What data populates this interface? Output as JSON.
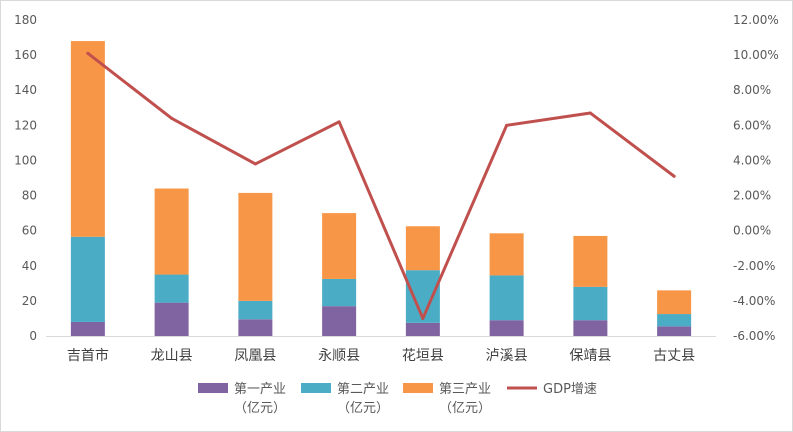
{
  "chart_data": {
    "type": "bar",
    "stacked": true,
    "categories": [
      "吉首市",
      "龙山县",
      "凤凰县",
      "永顺县",
      "花垣县",
      "泸溪县",
      "保靖县",
      "古丈县"
    ],
    "series": [
      {
        "name": "第一产业",
        "name_line2": "（亿元）",
        "type": "bar",
        "axis": "left",
        "color": "#8064A2",
        "values": [
          8,
          19,
          9.5,
          17,
          7.5,
          9,
          9,
          5.5
        ]
      },
      {
        "name": "第二产业",
        "name_line2": "（亿元）",
        "type": "bar",
        "axis": "left",
        "color": "#4BACC6",
        "values": [
          48.5,
          16,
          10.5,
          15.5,
          30,
          25.5,
          19,
          7
        ]
      },
      {
        "name": "第三产业",
        "name_line2": "（亿元）",
        "type": "bar",
        "axis": "left",
        "color": "#F79646",
        "values": [
          111.5,
          49,
          61.5,
          37.5,
          25,
          24,
          29,
          13.5
        ]
      },
      {
        "name": "GDP增速",
        "type": "line",
        "axis": "right",
        "color": "#C0504D",
        "values": [
          10.1,
          6.4,
          3.8,
          6.2,
          -5.0,
          6.0,
          6.7,
          3.1
        ]
      }
    ],
    "ylim": [
      0,
      180
    ],
    "yticks": [
      "0",
      "20",
      "40",
      "60",
      "80",
      "100",
      "120",
      "140",
      "160",
      "180"
    ],
    "y2lim": [
      -6,
      12
    ],
    "y2ticks": [
      "-6.00%",
      "-4.00%",
      "-2.00%",
      "0.00%",
      "2.00%",
      "4.00%",
      "6.00%",
      "8.00%",
      "10.00%",
      "12.00%"
    ],
    "grid": false,
    "legend": "bottom",
    "title": "",
    "xlabel": "",
    "ylabel": "",
    "y2label": ""
  }
}
